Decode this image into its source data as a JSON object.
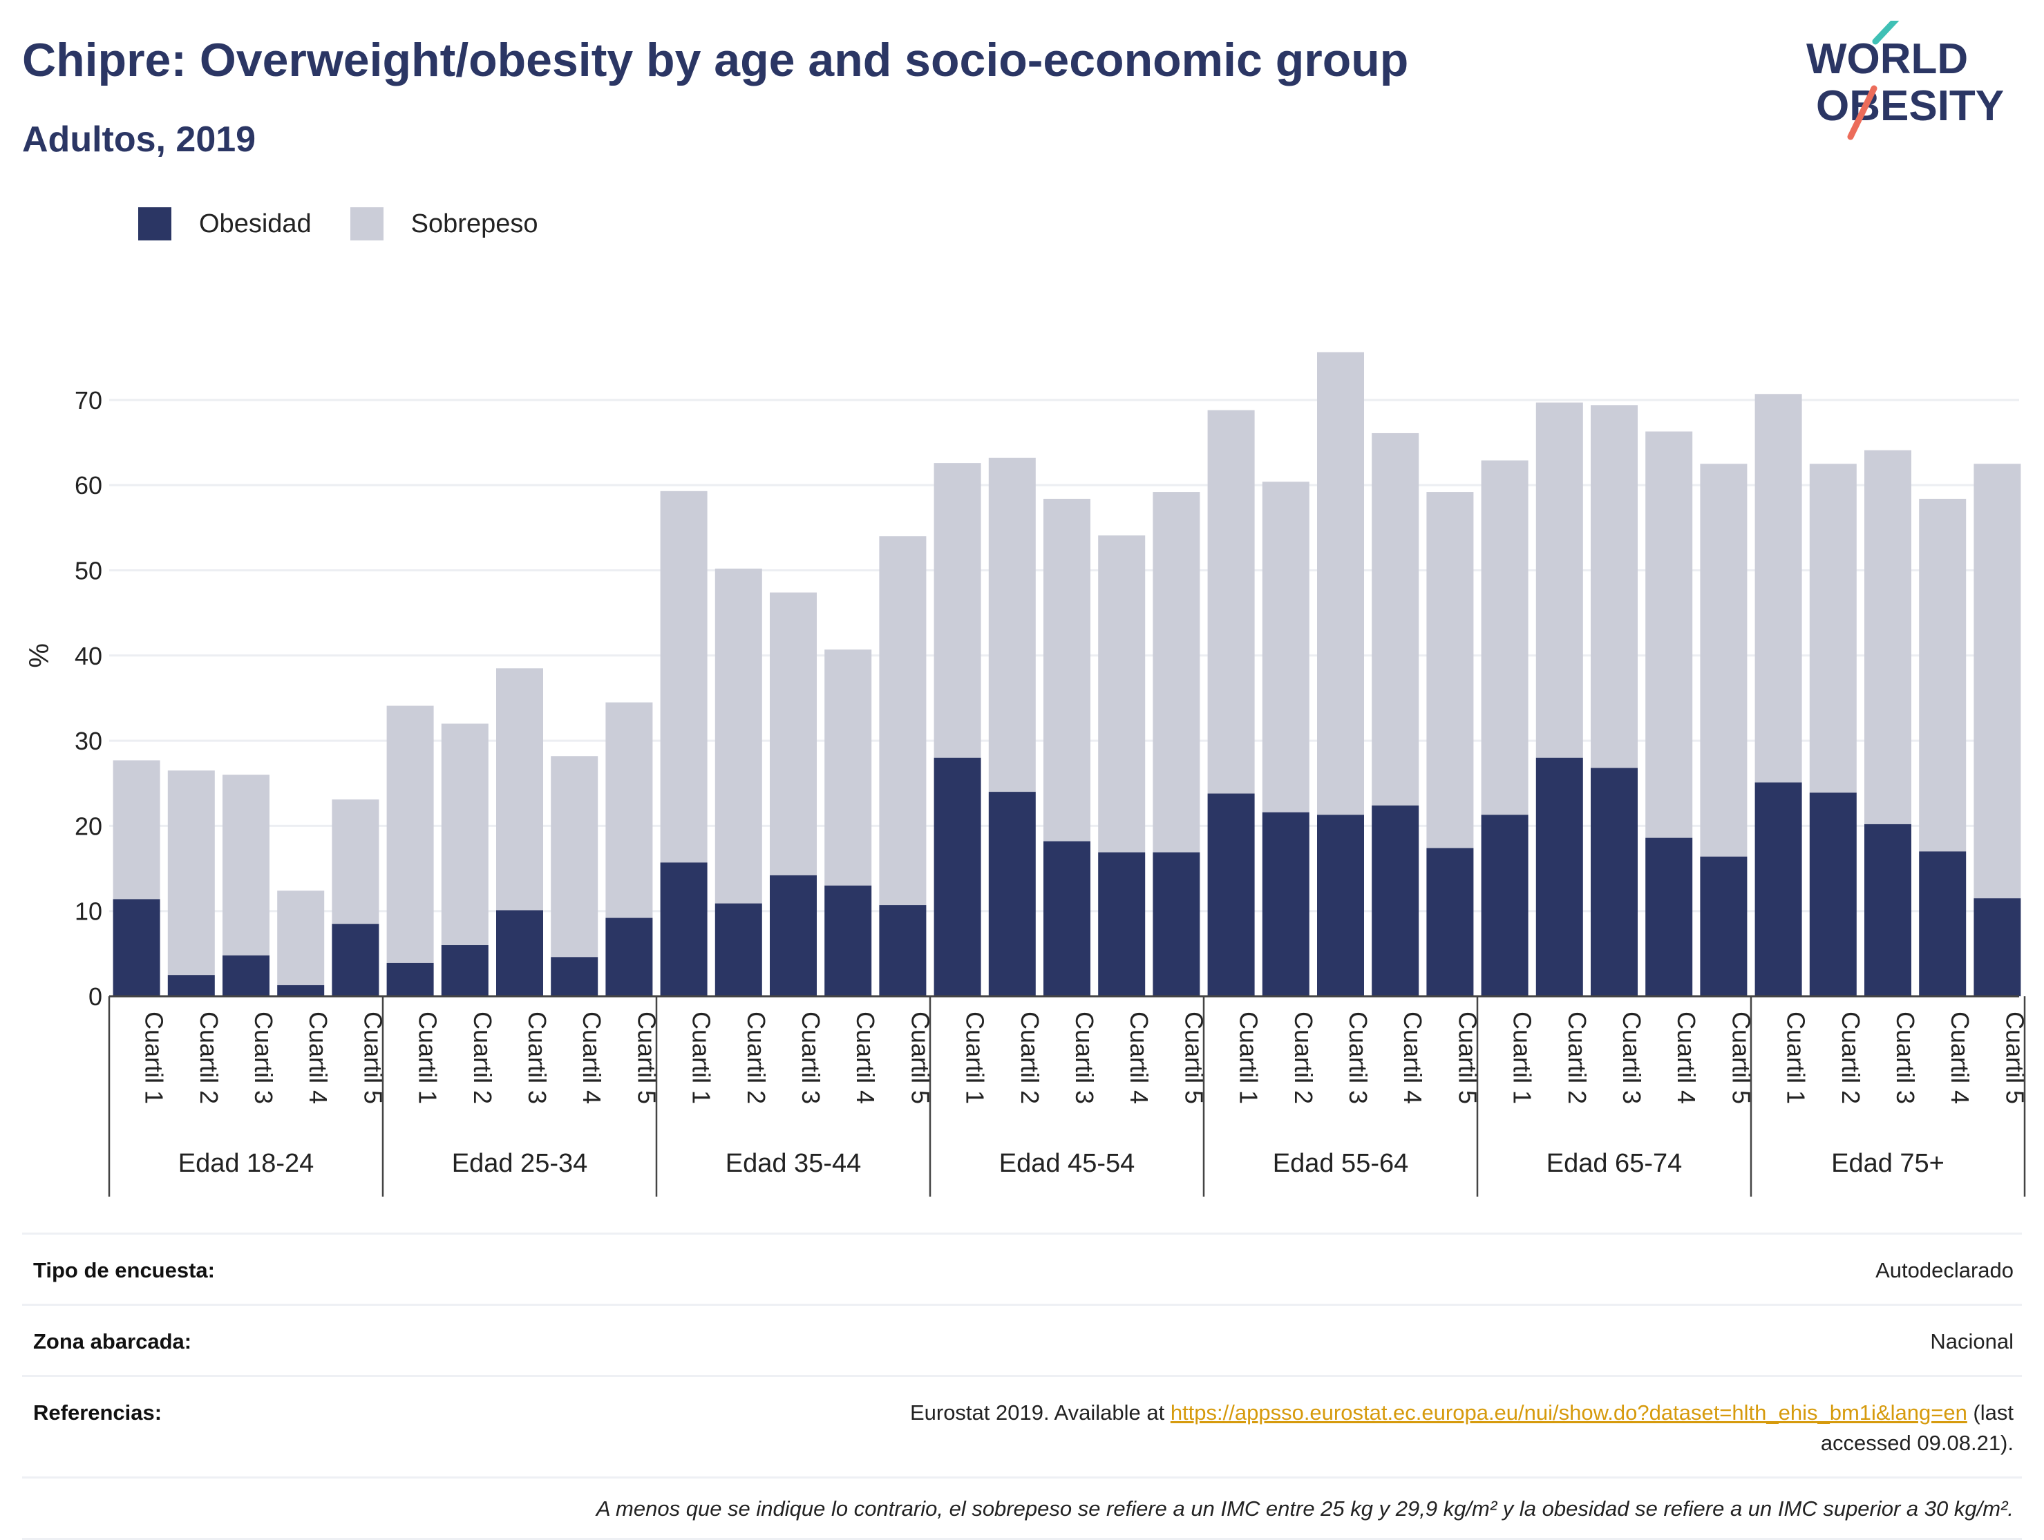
{
  "title": "Chipre: Overweight/obesity by age and socio-economic group",
  "subtitle": "Adultos, 2019",
  "logo": {
    "line1": "WORLD",
    "line2": "OBESITY"
  },
  "legend": [
    {
      "label": "Obesidad",
      "color": "#2b3664"
    },
    {
      "label": "Sobrepeso",
      "color": "#cbcdd8"
    }
  ],
  "chart_data": {
    "type": "bar",
    "stacked": true,
    "ylabel": "%",
    "ylim": [
      0,
      80
    ],
    "yticks": [
      0,
      10,
      20,
      30,
      40,
      50,
      60,
      70
    ],
    "grid": true,
    "legend_position": "top-left",
    "groups": [
      {
        "label": "Edad 18-24",
        "categories": [
          "Cuartil 1",
          "Cuartil 2",
          "Cuartil 3",
          "Cuartil 4",
          "Cuartil 5"
        ],
        "obesidad": [
          11.4,
          2.5,
          4.8,
          1.3,
          8.5
        ],
        "total": [
          27.7,
          26.5,
          26.0,
          12.4,
          23.1
        ]
      },
      {
        "label": "Edad 25-34",
        "categories": [
          "Cuartil 1",
          "Cuartil 2",
          "Cuartil 3",
          "Cuartil 4",
          "Cuartil 5"
        ],
        "obesidad": [
          3.9,
          6.0,
          10.1,
          4.6,
          9.2
        ],
        "total": [
          34.1,
          32.0,
          38.5,
          28.2,
          34.5
        ]
      },
      {
        "label": "Edad 35-44",
        "categories": [
          "Cuartil 1",
          "Cuartil 2",
          "Cuartil 3",
          "Cuartil 4",
          "Cuartil 5"
        ],
        "obesidad": [
          15.7,
          10.9,
          14.2,
          13.0,
          10.7
        ],
        "total": [
          59.3,
          50.2,
          47.4,
          40.7,
          54.0
        ]
      },
      {
        "label": "Edad 45-54",
        "categories": [
          "Cuartil 1",
          "Cuartil 2",
          "Cuartil 3",
          "Cuartil 4",
          "Cuartil 5"
        ],
        "obesidad": [
          28.0,
          24.0,
          18.2,
          16.9,
          16.9
        ],
        "total": [
          62.6,
          63.2,
          58.4,
          54.1,
          59.2
        ]
      },
      {
        "label": "Edad 55-64",
        "categories": [
          "Cuartil 1",
          "Cuartil 2",
          "Cuartil 3",
          "Cuartil 4",
          "Cuartil 5"
        ],
        "obesidad": [
          23.8,
          21.6,
          21.3,
          22.4,
          17.4
        ],
        "total": [
          68.8,
          60.4,
          75.6,
          66.1,
          59.2
        ]
      },
      {
        "label": "Edad 65-74",
        "categories": [
          "Cuartil 1",
          "Cuartil 2",
          "Cuartil 3",
          "Cuartil 4",
          "Cuartil 5"
        ],
        "obesidad": [
          21.3,
          28.0,
          26.8,
          18.6,
          16.4
        ],
        "total": [
          62.9,
          69.7,
          69.4,
          66.3,
          62.5
        ]
      },
      {
        "label": "Edad 75+",
        "categories": [
          "Cuartil 1",
          "Cuartil 2",
          "Cuartil 3",
          "Cuartil 4",
          "Cuartil 5"
        ],
        "obesidad": [
          25.1,
          23.9,
          20.2,
          17.0,
          11.5
        ],
        "total": [
          70.7,
          62.5,
          64.1,
          58.4,
          62.5
        ]
      }
    ]
  },
  "info": {
    "survey_label": "Tipo de encuesta:",
    "survey_value": "Autodeclarado",
    "area_label": "Zona abarcada:",
    "area_value": "Nacional",
    "refs_label": "Referencias:",
    "refs_prefix": "Eurostat 2019. Available at ",
    "refs_link": "https://appsso.eurostat.ec.europa.eu/nui/show.do?dataset=hlth_ehis_bm1i&lang=en",
    "refs_suffix": " (last accessed 09.08.21).",
    "note": "A menos que se indique lo contrario, el sobrepeso se refiere a un IMC entre 25 kg y 29,9 kg/m² y la obesidad se refiere a un IMC superior a 30 kg/m²."
  }
}
